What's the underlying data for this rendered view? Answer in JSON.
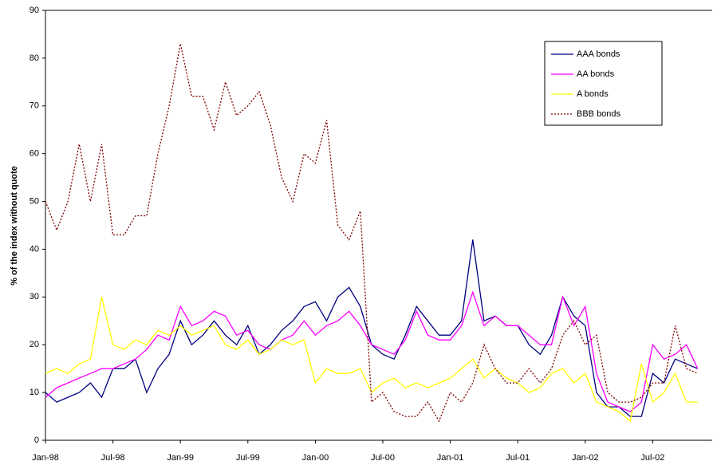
{
  "chart_data": {
    "type": "line",
    "y_label": "% of the index without quote",
    "categories": [
      "Jan-98",
      null,
      null,
      null,
      null,
      null,
      "Jul-98",
      null,
      null,
      null,
      null,
      null,
      "Jan-99",
      null,
      null,
      null,
      null,
      null,
      "Jul-99",
      null,
      null,
      null,
      null,
      null,
      "Jan-00",
      null,
      null,
      null,
      null,
      null,
      "Jul-00",
      null,
      null,
      null,
      null,
      null,
      "Jan-01",
      null,
      null,
      null,
      null,
      null,
      "Jul-01",
      null,
      null,
      null,
      null,
      null,
      "Jan-02",
      null,
      null,
      null,
      null,
      null,
      "Jul-02",
      null,
      null,
      null,
      null
    ],
    "ylim": [
      0,
      90
    ],
    "yticks": [
      0,
      10,
      20,
      30,
      40,
      50,
      60,
      70,
      80,
      90
    ],
    "legend": "upper right",
    "series": [
      {
        "name": "AAA bonds",
        "color": "#000080",
        "dash": "solid",
        "values": [
          10,
          8,
          9,
          10,
          12,
          9,
          15,
          15,
          17,
          10,
          15,
          18,
          25,
          20,
          22,
          25,
          22,
          20,
          24,
          18,
          20,
          23,
          25,
          28,
          29,
          25,
          30,
          32,
          28,
          20,
          18,
          17,
          22,
          28,
          25,
          22,
          22,
          25,
          42,
          25,
          26,
          24,
          24,
          20,
          18,
          22,
          30,
          26,
          24,
          10,
          7,
          7,
          5,
          5,
          14,
          12,
          17,
          16,
          15
        ]
      },
      {
        "name": "AA bonds",
        "color": "#ff00ff",
        "dash": "solid",
        "values": [
          9,
          11,
          12,
          13,
          14,
          15,
          15,
          16,
          17,
          19,
          22,
          21,
          28,
          24,
          25,
          27,
          26,
          22,
          23,
          20,
          19,
          21,
          22,
          25,
          22,
          24,
          25,
          27,
          24,
          20,
          19,
          18,
          21,
          27,
          22,
          21,
          21,
          24,
          31,
          24,
          26,
          24,
          24,
          22,
          20,
          20,
          30,
          24,
          28,
          14,
          8,
          7,
          6,
          8,
          20,
          17,
          18,
          20,
          15
        ]
      },
      {
        "name": "A bonds",
        "color": "#ffff00",
        "dash": "solid",
        "values": [
          14,
          15,
          14,
          16,
          17,
          30,
          20,
          19,
          21,
          20,
          23,
          22,
          24,
          22,
          23,
          24,
          20,
          19,
          21,
          18,
          19,
          21,
          20,
          21,
          12,
          15,
          14,
          14,
          15,
          10,
          12,
          13,
          11,
          12,
          11,
          12,
          13,
          15,
          17,
          13,
          15,
          13,
          12,
          10,
          11,
          14,
          15,
          12,
          14,
          8,
          7,
          6,
          4,
          16,
          8,
          10,
          14,
          8,
          8
        ]
      },
      {
        "name": "BBB bonds",
        "color": "#800000",
        "dash": "dotted",
        "values": [
          50,
          44,
          50,
          62,
          50,
          62,
          43,
          43,
          47,
          47,
          60,
          70,
          83,
          72,
          72,
          65,
          75,
          68,
          70,
          73,
          66,
          55,
          50,
          60,
          58,
          67,
          45,
          42,
          48,
          8,
          10,
          6,
          5,
          5,
          8,
          4,
          10,
          8,
          12,
          20,
          15,
          12,
          12,
          15,
          12,
          15,
          22,
          25,
          20,
          22,
          10,
          8,
          8,
          9,
          12,
          12,
          24,
          15,
          14
        ]
      }
    ]
  }
}
